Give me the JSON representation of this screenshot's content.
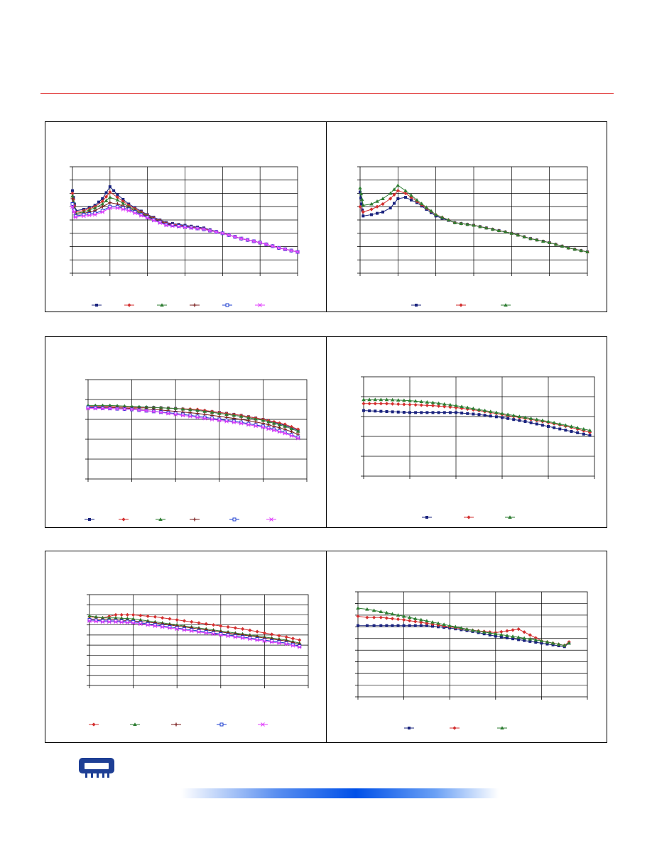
{
  "colors": {
    "rule": "#e03030",
    "logo": "#1e3f95",
    "bar_accent": "#0050e8"
  },
  "logo_icon": "memory-module-icon",
  "chart_data": [
    {
      "type": "line",
      "grid": true,
      "xlim": [
        0,
        6
      ],
      "ylim": [
        0,
        8
      ],
      "x_ticks": 6,
      "y_ticks": 8,
      "series": [
        {
          "color": "#1a237e",
          "marker": "square",
          "x": [
            0,
            0.08,
            0.3,
            0.6,
            0.8,
            1.0,
            1.2,
            1.5,
            2.0,
            2.5,
            3.0,
            3.5,
            4.0,
            4.5,
            5.0,
            5.5,
            6.0
          ],
          "y": [
            6.2,
            4.7,
            4.8,
            5.1,
            5.6,
            6.5,
            5.9,
            5.2,
            4.4,
            3.8,
            3.6,
            3.4,
            3.0,
            2.6,
            2.3,
            1.9,
            1.6
          ]
        },
        {
          "color": "#d32f2f",
          "marker": "diamond",
          "x": [
            0,
            0.08,
            0.3,
            0.6,
            0.8,
            1.0,
            1.2,
            1.5,
            2.0,
            2.5,
            3.0,
            3.5,
            4.0,
            4.5,
            5.0,
            5.5,
            6.0
          ],
          "y": [
            6.0,
            4.6,
            4.7,
            5.0,
            5.4,
            6.1,
            5.7,
            5.1,
            4.35,
            3.75,
            3.55,
            3.35,
            3.0,
            2.6,
            2.3,
            1.9,
            1.6
          ]
        },
        {
          "color": "#2e7d32",
          "marker": "triangle",
          "x": [
            0,
            0.08,
            0.3,
            0.6,
            0.8,
            1.0,
            1.2,
            1.5,
            2.0,
            2.5,
            3.0,
            3.5,
            4.0,
            4.5,
            5.0,
            5.5,
            6.0
          ],
          "y": [
            5.8,
            4.5,
            4.6,
            4.9,
            5.2,
            5.7,
            5.5,
            5.0,
            4.3,
            3.7,
            3.5,
            3.3,
            3.0,
            2.6,
            2.3,
            1.9,
            1.6
          ]
        },
        {
          "color": "#7b1f1f",
          "marker": "cross",
          "x": [
            0,
            0.08,
            0.3,
            0.6,
            0.8,
            1.0,
            1.2,
            1.5,
            2.0,
            2.5,
            3.0,
            3.5,
            4.0,
            4.5,
            5.0,
            5.5,
            6.0
          ],
          "y": [
            5.6,
            4.4,
            4.5,
            4.7,
            5.0,
            5.3,
            5.2,
            4.9,
            4.25,
            3.7,
            3.5,
            3.3,
            3.0,
            2.6,
            2.3,
            1.9,
            1.6
          ]
        },
        {
          "color": "#1e3fd0",
          "marker": "open-square",
          "x": [
            0,
            0.08,
            0.3,
            0.6,
            0.8,
            1.0,
            1.2,
            1.5,
            2.0,
            2.5,
            3.0,
            3.5,
            4.0,
            4.5,
            5.0,
            5.5,
            6.0
          ],
          "y": [
            5.2,
            4.3,
            4.4,
            4.5,
            4.7,
            5.0,
            5.0,
            4.8,
            4.2,
            3.65,
            3.5,
            3.3,
            3.0,
            2.6,
            2.3,
            1.9,
            1.6
          ]
        },
        {
          "color": "#e040fb",
          "marker": "star",
          "x": [
            0,
            0.08,
            0.3,
            0.6,
            0.8,
            1.0,
            1.2,
            1.5,
            2.0,
            2.5,
            3.0,
            3.5,
            4.0,
            4.5,
            5.0,
            5.5,
            6.0
          ],
          "y": [
            5.0,
            4.2,
            4.3,
            4.4,
            4.6,
            4.9,
            4.9,
            4.7,
            4.15,
            3.6,
            3.45,
            3.3,
            3.0,
            2.6,
            2.3,
            1.9,
            1.6
          ]
        }
      ]
    },
    {
      "type": "line",
      "grid": true,
      "xlim": [
        0,
        6
      ],
      "ylim": [
        0,
        8
      ],
      "x_ticks": 6,
      "y_ticks": 8,
      "series": [
        {
          "color": "#1a237e",
          "marker": "square",
          "x": [
            0,
            0.08,
            0.3,
            0.6,
            0.8,
            1.0,
            1.2,
            1.5,
            2.0,
            2.5,
            3.0,
            3.5,
            4.0,
            4.5,
            5.0,
            5.5,
            6.0
          ],
          "y": [
            6.1,
            4.3,
            4.4,
            4.6,
            4.9,
            5.6,
            5.7,
            5.3,
            4.3,
            3.8,
            3.6,
            3.3,
            3.0,
            2.6,
            2.3,
            1.9,
            1.6
          ]
        },
        {
          "color": "#d32f2f",
          "marker": "diamond",
          "x": [
            0,
            0.08,
            0.3,
            0.6,
            0.8,
            1.0,
            1.2,
            1.5,
            2.0,
            2.5,
            3.0,
            3.5,
            4.0,
            4.5,
            5.0,
            5.5,
            6.0
          ],
          "y": [
            5.0,
            4.6,
            4.8,
            5.2,
            5.6,
            6.2,
            6.0,
            5.4,
            4.4,
            3.8,
            3.6,
            3.3,
            3.0,
            2.6,
            2.3,
            1.9,
            1.6
          ]
        },
        {
          "color": "#2e7d32",
          "marker": "triangle",
          "x": [
            0,
            0.08,
            0.3,
            0.6,
            0.8,
            1.0,
            1.2,
            1.5,
            2.0,
            2.5,
            3.0,
            3.5,
            4.0,
            4.5,
            5.0,
            5.5,
            6.0
          ],
          "y": [
            6.4,
            5.1,
            5.2,
            5.6,
            6.0,
            6.6,
            6.2,
            5.5,
            4.4,
            3.8,
            3.6,
            3.3,
            3.0,
            2.6,
            2.3,
            1.9,
            1.6
          ]
        }
      ]
    },
    {
      "type": "line",
      "grid": true,
      "xlim": [
        0,
        5
      ],
      "ylim": [
        0,
        5
      ],
      "x_ticks": 5,
      "y_ticks": 5,
      "series": [
        {
          "color": "#1a237e",
          "marker": "square",
          "x": [
            0,
            0.5,
            1.0,
            1.5,
            2.0,
            2.5,
            3.0,
            3.5,
            4.0,
            4.5,
            4.8
          ],
          "y": [
            3.65,
            3.65,
            3.6,
            3.6,
            3.55,
            3.45,
            3.35,
            3.2,
            3.0,
            2.7,
            2.45
          ]
        },
        {
          "color": "#d32f2f",
          "marker": "diamond",
          "x": [
            0,
            0.5,
            1.0,
            1.5,
            2.0,
            2.5,
            3.0,
            3.5,
            4.0,
            4.5,
            4.8
          ],
          "y": [
            3.65,
            3.65,
            3.6,
            3.6,
            3.55,
            3.5,
            3.35,
            3.2,
            3.0,
            2.75,
            2.5
          ]
        },
        {
          "color": "#2e7d32",
          "marker": "triangle",
          "x": [
            0,
            0.5,
            1.0,
            1.5,
            2.0,
            2.5,
            3.0,
            3.5,
            4.0,
            4.5,
            4.8
          ],
          "y": [
            3.7,
            3.7,
            3.65,
            3.6,
            3.55,
            3.45,
            3.3,
            3.15,
            2.95,
            2.65,
            2.4
          ]
        },
        {
          "color": "#7b1f1f",
          "marker": "cross",
          "x": [
            0,
            0.5,
            1.0,
            1.5,
            2.0,
            2.5,
            3.0,
            3.5,
            4.0,
            4.5,
            4.8
          ],
          "y": [
            3.6,
            3.6,
            3.55,
            3.5,
            3.4,
            3.3,
            3.15,
            3.0,
            2.8,
            2.5,
            2.25
          ]
        },
        {
          "color": "#1e3fd0",
          "marker": "open-square",
          "x": [
            0,
            0.5,
            1.0,
            1.5,
            2.0,
            2.5,
            3.0,
            3.5,
            4.0,
            4.5,
            4.8
          ],
          "y": [
            3.6,
            3.55,
            3.5,
            3.4,
            3.3,
            3.15,
            3.0,
            2.85,
            2.65,
            2.35,
            2.1
          ]
        },
        {
          "color": "#e040fb",
          "marker": "star",
          "x": [
            0,
            0.5,
            1.0,
            1.5,
            2.0,
            2.5,
            3.0,
            3.5,
            4.0,
            4.5,
            4.8
          ],
          "y": [
            3.55,
            3.55,
            3.5,
            3.4,
            3.25,
            3.1,
            2.95,
            2.8,
            2.6,
            2.3,
            2.05
          ]
        }
      ]
    },
    {
      "type": "line",
      "grid": true,
      "xlim": [
        0,
        5
      ],
      "ylim": [
        0,
        5
      ],
      "x_ticks": 5,
      "y_ticks": 5,
      "series": [
        {
          "color": "#1a237e",
          "marker": "square",
          "x": [
            0,
            0.5,
            1.0,
            1.5,
            2.0,
            2.5,
            3.0,
            3.5,
            4.0,
            4.5,
            4.9
          ],
          "y": [
            3.3,
            3.25,
            3.2,
            3.2,
            3.2,
            3.1,
            2.95,
            2.75,
            2.5,
            2.25,
            2.05
          ]
        },
        {
          "color": "#d32f2f",
          "marker": "diamond",
          "x": [
            0,
            0.5,
            1.0,
            1.5,
            2.0,
            2.5,
            3.0,
            3.5,
            4.0,
            4.5,
            4.9
          ],
          "y": [
            3.65,
            3.65,
            3.6,
            3.55,
            3.45,
            3.3,
            3.1,
            2.9,
            2.7,
            2.45,
            2.2
          ]
        },
        {
          "color": "#2e7d32",
          "marker": "triangle",
          "x": [
            0,
            0.5,
            1.0,
            1.5,
            2.0,
            2.5,
            3.0,
            3.5,
            4.0,
            4.5,
            4.9
          ],
          "y": [
            3.85,
            3.85,
            3.8,
            3.7,
            3.55,
            3.35,
            3.15,
            2.95,
            2.75,
            2.5,
            2.3
          ]
        }
      ]
    },
    {
      "type": "line",
      "grid": true,
      "xlim": [
        0,
        5
      ],
      "ylim": [
        0,
        9
      ],
      "x_ticks": 5,
      "y_ticks": 9,
      "series": [
        {
          "color": "#d32f2f",
          "marker": "diamond",
          "x": [
            0,
            0.3,
            0.6,
            1.0,
            1.5,
            2.0,
            2.5,
            3.0,
            3.5,
            4.0,
            4.5,
            4.8
          ],
          "y": [
            6.8,
            6.7,
            7.0,
            7.0,
            6.8,
            6.5,
            6.2,
            5.9,
            5.6,
            5.2,
            4.8,
            4.5
          ]
        },
        {
          "color": "#2e7d32",
          "marker": "triangle",
          "x": [
            0,
            0.3,
            0.6,
            1.0,
            1.5,
            2.0,
            2.5,
            3.0,
            3.5,
            4.0,
            4.5,
            4.8
          ],
          "y": [
            6.9,
            6.7,
            6.7,
            6.6,
            6.3,
            6.0,
            5.7,
            5.4,
            5.1,
            4.8,
            4.5,
            4.2
          ]
        },
        {
          "color": "#7b1f1f",
          "marker": "cross",
          "x": [
            0,
            0.3,
            0.6,
            1.0,
            1.5,
            2.0,
            2.5,
            3.0,
            3.5,
            4.0,
            4.5,
            4.8
          ],
          "y": [
            6.6,
            6.5,
            6.5,
            6.4,
            6.2,
            5.9,
            5.6,
            5.3,
            5.0,
            4.7,
            4.4,
            4.1
          ]
        },
        {
          "color": "#1e3fd0",
          "marker": "open-square",
          "x": [
            0,
            0.3,
            0.6,
            1.0,
            1.5,
            2.0,
            2.5,
            3.0,
            3.5,
            4.0,
            4.5,
            4.8
          ],
          "y": [
            6.5,
            6.4,
            6.4,
            6.3,
            6.0,
            5.7,
            5.4,
            5.1,
            4.8,
            4.5,
            4.2,
            3.9
          ]
        },
        {
          "color": "#e040fb",
          "marker": "star",
          "x": [
            0,
            0.3,
            0.6,
            1.0,
            1.5,
            2.0,
            2.5,
            3.0,
            3.5,
            4.0,
            4.5,
            4.8
          ],
          "y": [
            6.4,
            6.3,
            6.3,
            6.2,
            5.9,
            5.6,
            5.3,
            5.0,
            4.7,
            4.4,
            4.1,
            3.8
          ]
        }
      ]
    },
    {
      "type": "line",
      "grid": true,
      "xlim": [
        0,
        5
      ],
      "ylim": [
        0,
        9
      ],
      "x_ticks": 5,
      "y_ticks": 9,
      "series": [
        {
          "color": "#1a237e",
          "marker": "square",
          "x": [
            0,
            0.2,
            0.5,
            1.0,
            1.5,
            2.0,
            2.5,
            3.0,
            3.5,
            4.0,
            4.5,
            4.6
          ],
          "y": [
            6.1,
            6.1,
            6.1,
            6.1,
            6.1,
            5.9,
            5.6,
            5.2,
            4.9,
            4.6,
            4.3,
            4.6
          ]
        },
        {
          "color": "#d32f2f",
          "marker": "diamond",
          "x": [
            0,
            0.2,
            0.5,
            1.0,
            1.5,
            2.0,
            2.5,
            3.0,
            3.5,
            4.0,
            4.5,
            4.6
          ],
          "y": [
            6.9,
            6.8,
            6.8,
            6.6,
            6.3,
            6.0,
            5.7,
            5.5,
            5.8,
            4.8,
            4.4,
            4.7
          ]
        },
        {
          "color": "#2e7d32",
          "marker": "triangle",
          "x": [
            0,
            0.2,
            0.5,
            1.0,
            1.5,
            2.0,
            2.5,
            3.0,
            3.5,
            4.0,
            4.5,
            4.6
          ],
          "y": [
            7.6,
            7.5,
            7.3,
            6.9,
            6.5,
            6.1,
            5.7,
            5.4,
            5.1,
            4.8,
            4.4,
            4.6
          ]
        }
      ]
    }
  ]
}
